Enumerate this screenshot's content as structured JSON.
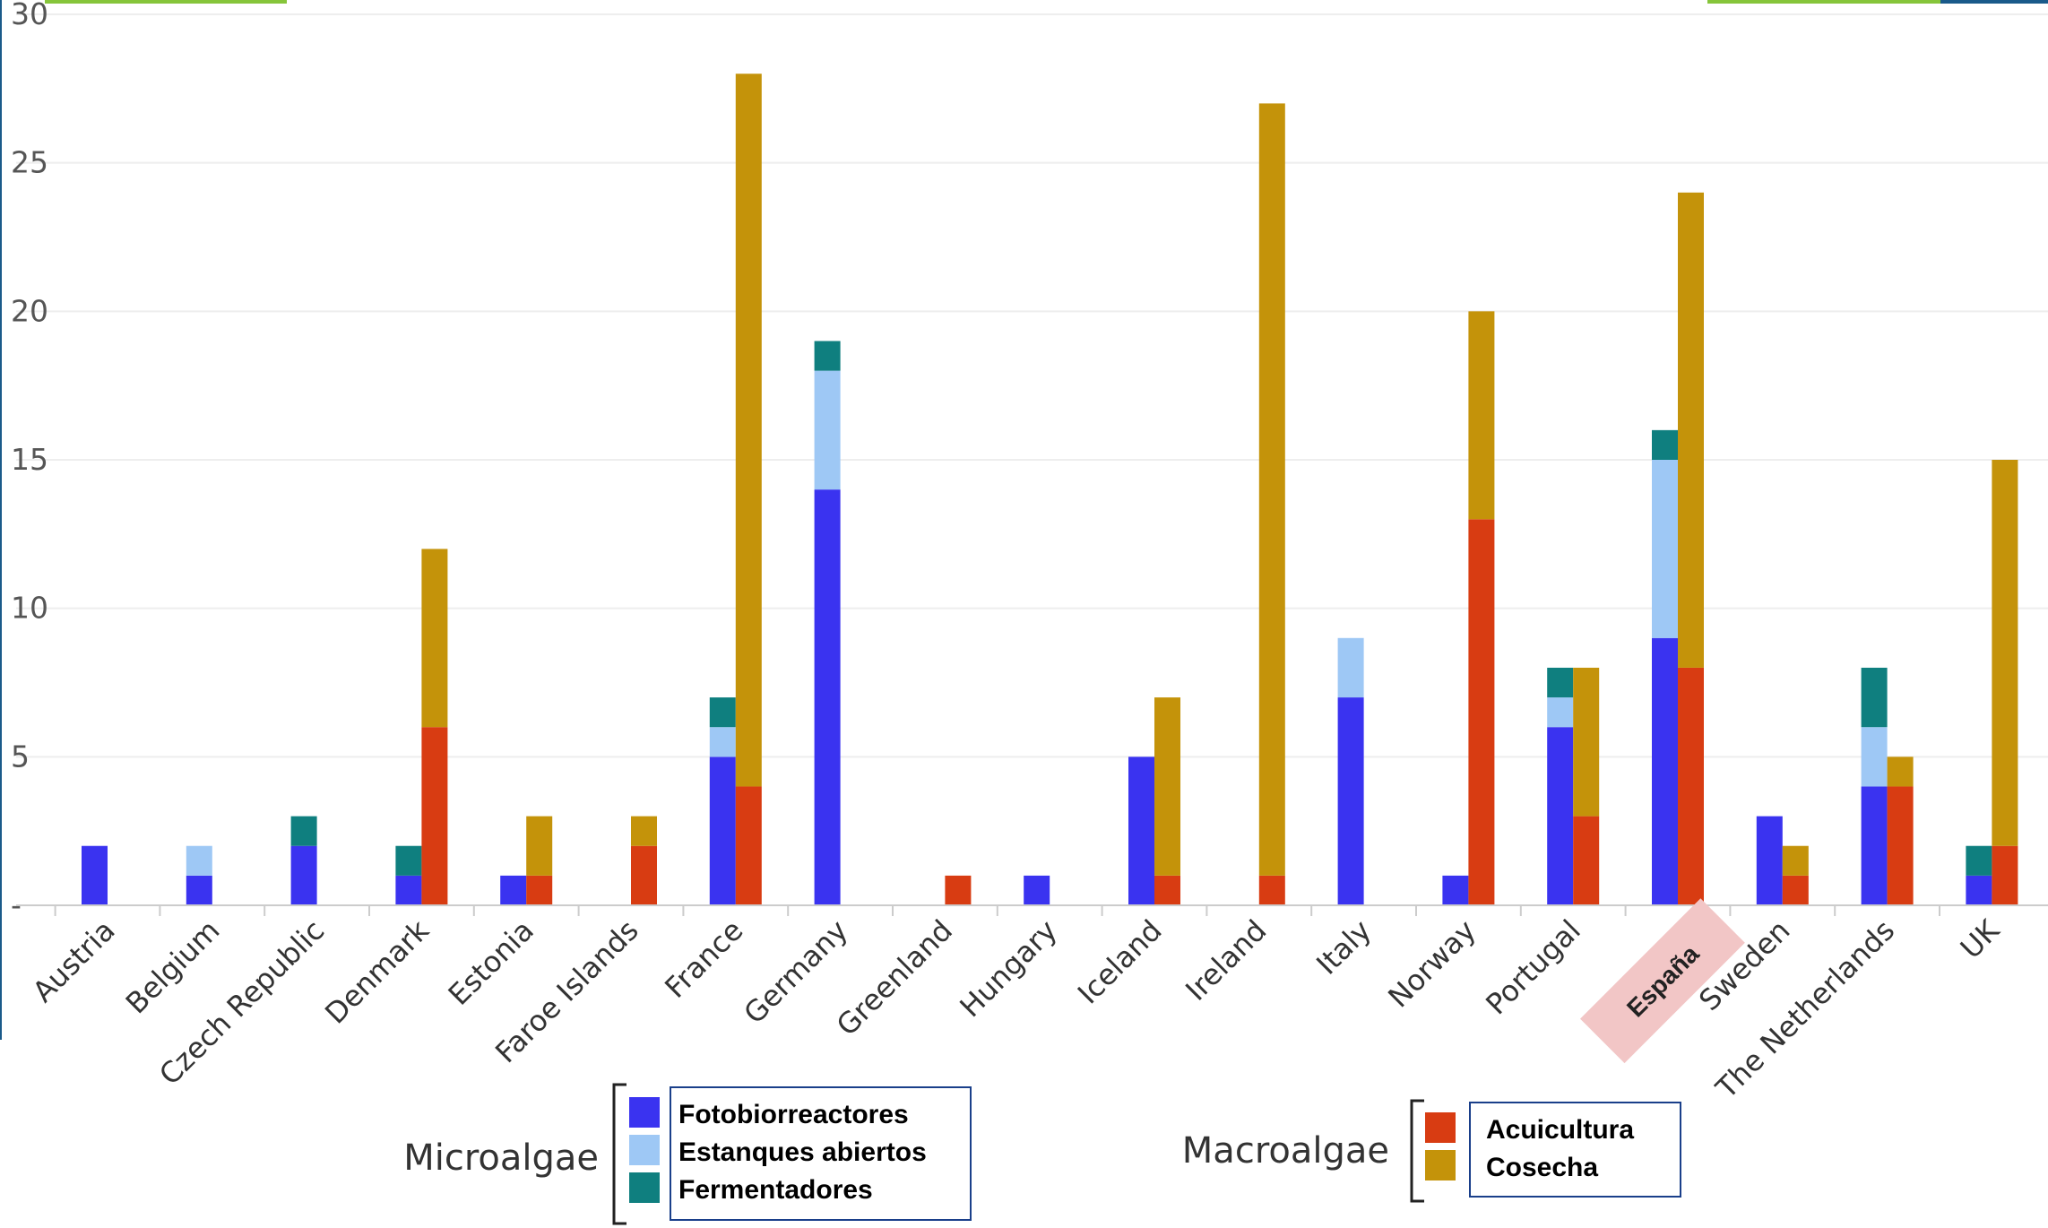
{
  "chart_data": {
    "type": "bar",
    "stacked": true,
    "ylim": [
      0,
      30
    ],
    "yticks": [
      0,
      5,
      10,
      15,
      20,
      25,
      30
    ],
    "ytick_labels": [
      "-",
      "5",
      "10",
      "15",
      "20",
      "25",
      "30"
    ],
    "grid": true,
    "categories": [
      "Austria",
      "Belgium",
      "Czech Republic",
      "Denmark",
      "Estonia",
      "Faroe Islands",
      "France",
      "Germany",
      "Greenland",
      "Hungary",
      "Iceland",
      "Ireland",
      "Italy",
      "Norway",
      "Portugal",
      "España",
      "Sweden",
      "The Netherlands",
      "UK"
    ],
    "highlighted_category": "España",
    "groups": [
      {
        "name": "Microalgae",
        "series": [
          {
            "name": "Fotobiorreactores",
            "color": "#3a33f0",
            "values": [
              2,
              1,
              2,
              1,
              1,
              0,
              5,
              14,
              0,
              1,
              5,
              0,
              7,
              1,
              6,
              9,
              3,
              4,
              1
            ]
          },
          {
            "name": "Estanques abiertos",
            "color": "#9ec8f5",
            "values": [
              0,
              1,
              0,
              0,
              0,
              0,
              1,
              4,
              0,
              0,
              0,
              0,
              2,
              0,
              1,
              6,
              0,
              2,
              0
            ]
          },
          {
            "name": "Fermentadores",
            "color": "#0f7f7f",
            "values": [
              0,
              0,
              1,
              1,
              0,
              0,
              1,
              1,
              0,
              0,
              0,
              0,
              0,
              0,
              1,
              1,
              0,
              2,
              1
            ]
          }
        ]
      },
      {
        "name": "Macroalgae",
        "series": [
          {
            "name": "Acuicultura",
            "color": "#d83c12",
            "values": [
              0,
              0,
              0,
              6,
              1,
              2,
              4,
              0,
              1,
              0,
              1,
              1,
              0,
              13,
              3,
              8,
              1,
              4,
              2
            ]
          },
          {
            "name": "Cosecha",
            "color": "#c4930a",
            "values": [
              0,
              0,
              0,
              6,
              2,
              1,
              24,
              0,
              0,
              0,
              6,
              26,
              0,
              7,
              5,
              16,
              1,
              1,
              13
            ]
          }
        ]
      }
    ]
  }
}
